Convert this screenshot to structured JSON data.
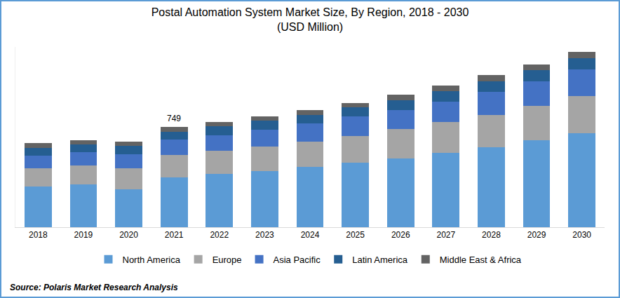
{
  "chart_data": {
    "type": "bar",
    "title": "Postal Automation System Market Size, By Region, 2018 - 2030",
    "subtitle": "(USD Million)",
    "source": "Source: Polaris Market Research Analysis",
    "categories": [
      "2018",
      "2019",
      "2020",
      "2021",
      "2022",
      "2023",
      "2024",
      "2025",
      "2026",
      "2027",
      "2028",
      "2029",
      "2030"
    ],
    "series": [
      {
        "name": "North America",
        "color": "#5b9bd5",
        "values": [
          307,
          322,
          286,
          375,
          401,
          421,
          453,
          484,
          515,
          557,
          598,
          650,
          702
        ]
      },
      {
        "name": "Europe",
        "color": "#a5a5a5",
        "values": [
          135,
          140,
          156,
          166,
          172,
          182,
          187,
          198,
          218,
          229,
          244,
          260,
          281
        ]
      },
      {
        "name": "Asia Pacific",
        "color": "#4472c4",
        "values": [
          94,
          99,
          104,
          114,
          114,
          125,
          135,
          146,
          146,
          156,
          172,
          182,
          198
        ]
      },
      {
        "name": "Latin America",
        "color": "#255e91",
        "values": [
          57,
          57,
          62,
          57,
          68,
          68,
          68,
          68,
          73,
          78,
          78,
          83,
          83
        ]
      },
      {
        "name": "Middle East & Africa",
        "color": "#636363",
        "values": [
          36,
          31,
          31,
          37,
          31,
          36,
          36,
          36,
          42,
          42,
          47,
          42,
          47
        ]
      }
    ],
    "annotations": [
      {
        "category": "2021",
        "value": 749,
        "text": "749"
      }
    ],
    "stacked": true,
    "ylim": [
      0,
      1350
    ],
    "tick_labels": "x",
    "grid": false,
    "legend": "bottom"
  }
}
